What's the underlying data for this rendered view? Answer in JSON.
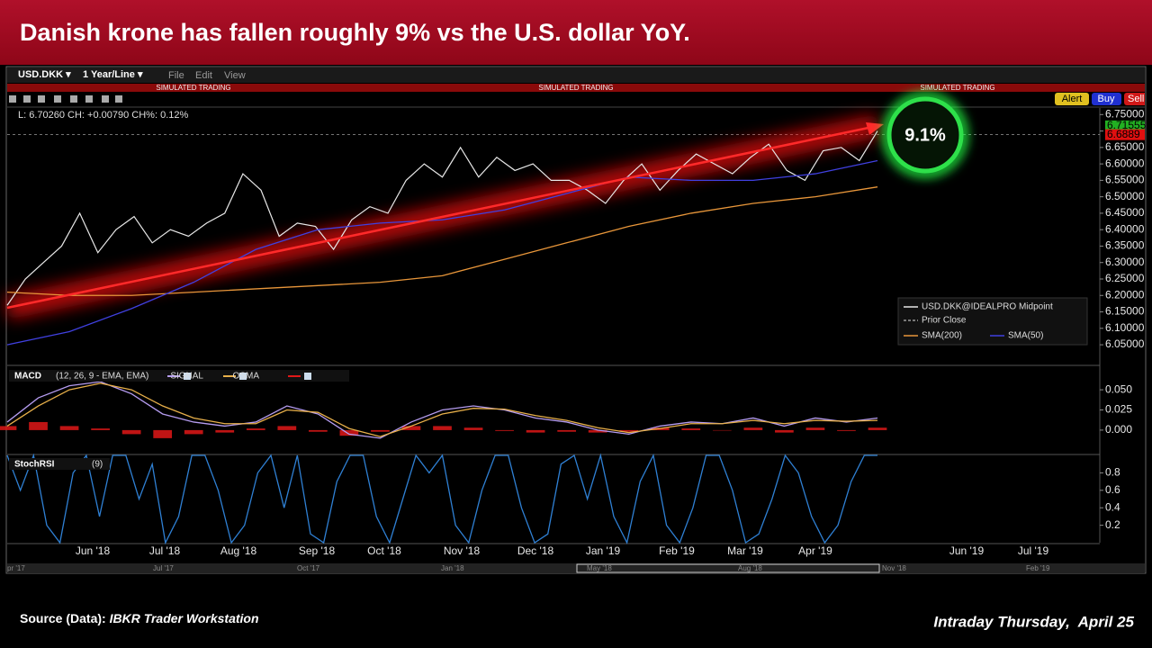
{
  "header": {
    "title": "Danish krone has fallen roughly 9% vs the U.S. dollar YoY."
  },
  "toolbar": {
    "symbol": "USD.DKK ▾",
    "period": "1 Year/Line ▾",
    "menus": [
      "File",
      "Edit",
      "View"
    ],
    "banner": "SIMULATED TRADING",
    "buttons": [
      "Alert",
      "Buy",
      "Sell"
    ]
  },
  "chart_data": [
    {
      "type": "line",
      "info": "L: 6.70260 CH: +0.00790 CH%: 0.12%",
      "annotation": "9.1%",
      "ylim": [
        5.99,
        6.77
      ],
      "yticks": [
        {
          "value": 6.05,
          "label": "6.05000"
        },
        {
          "value": 6.1,
          "label": "6.10000"
        },
        {
          "value": 6.15,
          "label": "6.15000"
        },
        {
          "value": 6.2,
          "label": "6.20000"
        },
        {
          "value": 6.25,
          "label": "6.25000"
        },
        {
          "value": 6.3,
          "label": "6.30000"
        },
        {
          "value": 6.35,
          "label": "6.35000"
        },
        {
          "value": 6.4,
          "label": "6.40000"
        },
        {
          "value": 6.45,
          "label": "6.45000"
        },
        {
          "value": 6.5,
          "label": "6.50000"
        },
        {
          "value": 6.55,
          "label": "6.55000"
        },
        {
          "value": 6.6,
          "label": "6.60000"
        },
        {
          "value": 6.65,
          "label": "6.65000"
        },
        {
          "value": 6.7,
          "label": "6.70000"
        },
        {
          "value": 6.75,
          "label": "6.75000"
        }
      ],
      "price_tags": [
        {
          "value": 6.71555,
          "color": "#22b022"
        },
        {
          "value": 6.6889,
          "color": "#e01010"
        }
      ],
      "prior_close": {
        "name": "Prior Close",
        "value": 6.6889,
        "color": "#9a9a9a"
      },
      "series": [
        {
          "name": "USD.DKK@IDEALPRO Midpoint",
          "color": "#e8e8e8",
          "values": [
            6.17,
            6.25,
            6.3,
            6.35,
            6.45,
            6.33,
            6.4,
            6.44,
            6.36,
            6.4,
            6.38,
            6.42,
            6.45,
            6.57,
            6.52,
            6.38,
            6.42,
            6.41,
            6.34,
            6.43,
            6.47,
            6.45,
            6.55,
            6.6,
            6.56,
            6.65,
            6.56,
            6.62,
            6.58,
            6.6,
            6.55,
            6.55,
            6.52,
            6.48,
            6.55,
            6.6,
            6.52,
            6.58,
            6.63,
            6.6,
            6.57,
            6.62,
            6.66,
            6.58,
            6.55,
            6.64,
            6.65,
            6.61,
            6.7
          ]
        },
        {
          "name": "SMA(200)",
          "color": "#e8963a",
          "values": [
            6.21,
            6.2,
            6.2,
            6.21,
            6.22,
            6.23,
            6.24,
            6.26,
            6.31,
            6.36,
            6.41,
            6.45,
            6.48,
            6.5,
            6.53
          ]
        },
        {
          "name": "SMA(50)",
          "color": "#4040e0",
          "values": [
            6.05,
            6.09,
            6.16,
            6.24,
            6.34,
            6.4,
            6.42,
            6.43,
            6.46,
            6.51,
            6.56,
            6.55,
            6.55,
            6.57,
            6.61
          ]
        }
      ]
    },
    {
      "type": "macd",
      "title": "MACD",
      "params": "(12, 26, 9 - EMA, EMA)",
      "ylim": [
        -0.028,
        0.078
      ],
      "yticks": [
        {
          "value": 0,
          "label": "0.000"
        },
        {
          "value": 0.025,
          "label": "0.025"
        },
        {
          "value": 0.05,
          "label": "0.050"
        }
      ],
      "series": [
        {
          "name": "MACD",
          "color": "#b59cf0",
          "kind": "line",
          "values": [
            0.01,
            0.04,
            0.055,
            0.06,
            0.045,
            0.02,
            0.01,
            0.005,
            0.01,
            0.03,
            0.02,
            -0.005,
            -0.01,
            0.01,
            0.025,
            0.03,
            0.025,
            0.015,
            0.01,
            0.0,
            -0.005,
            0.005,
            0.01,
            0.008,
            0.015,
            0.005,
            0.015,
            0.01,
            0.015
          ]
        },
        {
          "name": "SIGNAL",
          "color": "#e8b04a",
          "kind": "line",
          "values": [
            0.005,
            0.03,
            0.05,
            0.058,
            0.05,
            0.03,
            0.015,
            0.008,
            0.008,
            0.025,
            0.022,
            0.002,
            -0.008,
            0.005,
            0.02,
            0.027,
            0.026,
            0.018,
            0.012,
            0.003,
            -0.003,
            0.002,
            0.008,
            0.008,
            0.012,
            0.008,
            0.012,
            0.011,
            0.012
          ]
        },
        {
          "name": "OSMA",
          "color": "#e01818",
          "kind": "bar",
          "values": [
            0.005,
            0.01,
            0.005,
            0.002,
            -0.005,
            -0.01,
            -0.005,
            -0.003,
            0.002,
            0.005,
            -0.002,
            -0.007,
            -0.002,
            0.005,
            0.005,
            0.003,
            -0.001,
            -0.003,
            -0.002,
            -0.003,
            -0.002,
            0.003,
            0.002,
            0,
            0.003,
            -0.003,
            0.003,
            -0.001,
            0.003
          ]
        }
      ]
    },
    {
      "type": "line",
      "title": "StochRSI",
      "params": "(9)",
      "ylim": [
        0,
        1
      ],
      "yticks": [
        0.2,
        0.4,
        0.6,
        0.8
      ],
      "series": [
        {
          "color": "#2f80d4",
          "values": [
            1,
            0.6,
            1,
            0.2,
            0,
            0.8,
            1,
            0.3,
            1,
            1,
            0.5,
            0.9,
            0,
            0.3,
            1,
            1,
            0.6,
            0,
            0.2,
            0.8,
            1,
            0.4,
            1,
            0.1,
            0,
            0.7,
            1,
            1,
            0.3,
            0,
            0.5,
            1,
            0.8,
            1,
            0.2,
            0,
            0.6,
            1,
            1,
            0.4,
            0,
            0.1,
            0.9,
            1,
            0.5,
            1,
            0.3,
            0,
            0.7,
            1,
            0.2,
            0,
            0.4,
            1,
            1,
            0.6,
            0,
            0.1,
            0.5,
            1,
            0.8,
            0.3,
            0,
            0.2,
            0.7,
            1,
            1
          ]
        }
      ]
    }
  ],
  "time_axis": {
    "labels": [
      "Jun '18",
      "Jul '18",
      "Aug '18",
      "Sep '18",
      "Oct '18",
      "Nov '18",
      "Dec '18",
      "Jan '19",
      "Feb '19",
      "Mar '19",
      "Apr '19",
      "Jun '19",
      "Jul '19"
    ],
    "navigator": [
      "pr '17",
      "Jul '17",
      "Oct '17",
      "Jan '18",
      "May '18",
      "Aug '18",
      "Nov '18",
      "Feb '19"
    ]
  },
  "footer": {
    "source_label": "Source (Data):",
    "source": "IBKR Trader Workstation",
    "date": "Intraday Thursday,  April 25"
  }
}
